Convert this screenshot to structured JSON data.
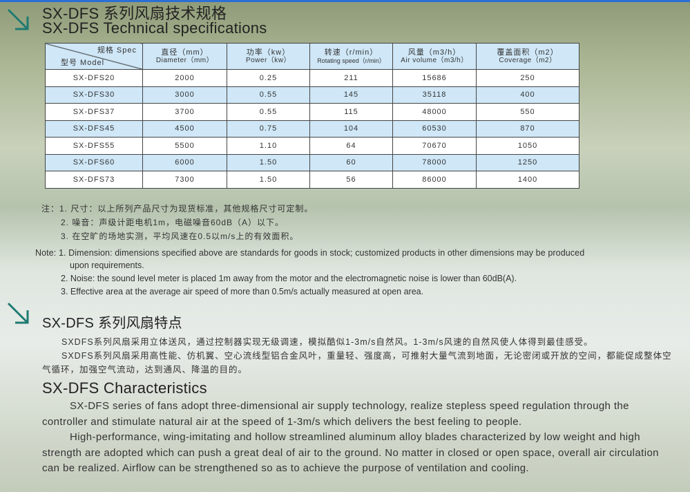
{
  "title_cn": "SX-DFS 系列风扇技术规格",
  "title_en": "SX-DFS Technical specifications",
  "table": {
    "corner_spec": "规格 Spec",
    "corner_model": "型号 Model",
    "headers": [
      {
        "cn": "直径（mm）",
        "en": "Diameter（mm）"
      },
      {
        "cn": "功率（kw）",
        "en": "Power（kw）"
      },
      {
        "cn": "转速（r/min）",
        "en": "Rotating speed（r/min）"
      },
      {
        "cn": "风量（m3/h）",
        "en": "Air volume（m3/h）"
      },
      {
        "cn": "覆盖面积（m2）",
        "en": "Coverage（m2）"
      }
    ],
    "rows": [
      [
        "SX-DFS20",
        "2000",
        "0.25",
        "211",
        "15686",
        "250"
      ],
      [
        "SX-DFS30",
        "3000",
        "0.55",
        "145",
        "35118",
        "400"
      ],
      [
        "SX-DFS37",
        "3700",
        "0.55",
        "115",
        "48000",
        "550"
      ],
      [
        "SX-DFS45",
        "4500",
        "0.75",
        "104",
        "60530",
        "870"
      ],
      [
        "SX-DFS55",
        "5500",
        "1.10",
        "64",
        "70670",
        "1050"
      ],
      [
        "SX-DFS60",
        "6000",
        "1.50",
        "60",
        "78000",
        "1250"
      ],
      [
        "SX-DFS73",
        "7300",
        "1.50",
        "56",
        "86000",
        "1400"
      ]
    ]
  },
  "notes_cn": [
    "注：1. 尺寸：以上所列产品尺寸为现货标准，其他规格尺寸可定制。",
    "2. 噪音：声级计距电机1m，电磁噪音60dB（A）以下。",
    "3. 在空旷的场地实测，平均风速在0.5以m/s上的有效面积。"
  ],
  "notes_en": [
    "Note: 1. Dimension: dimensions specified above are standards for goods in stock; customized products in other dimensions may be produced",
    "upon requirements.",
    "2. Noise: the sound level meter is placed 1m away from the motor and the electromagnetic noise is lower than 60dB(A).",
    "3. Effective area at the average air speed of more than 0.5m/s actually measured at open area."
  ],
  "features_title_cn": "SX-DFS 系列风扇特点",
  "features_cn": [
    "SXDFS系列风扇采用立体送风，通过控制器实现无级调速，模拟酷似1-3m/s自然风。1-3m/s风速的自然风使人体得到最佳感受。",
    "SXDFS系列风扇采用高性能、仿机翼、空心流线型铝合金风叶，重量轻、强度高，可推射大量气流到地面，无论密闭或开放的空间，都能促成整体空气循环，加强空气流动，达到通风、降温的目的。"
  ],
  "features_title_en": "SX-DFS Characteristics",
  "features_en": [
    "SX-DFS series of fans adopt three-dimensional air supply technology, realize stepless speed regulation through the controller and stimulate natural air at the speed of 1-3m/s which delivers the best feeling to people.",
    "High-performance, wing-imitating and hollow streamlined aluminum alloy blades characterized by low weight and high strength are adopted which can push a great deal of air to the ground. No matter in closed or open space, overall air circulation can be realized. Airflow can be strengthened so as to achieve the purpose of ventilation and cooling."
  ],
  "colors": {
    "accent": "#2a6fd6",
    "arrow": "#1f7a72",
    "table_header": "#cfe7f7"
  }
}
